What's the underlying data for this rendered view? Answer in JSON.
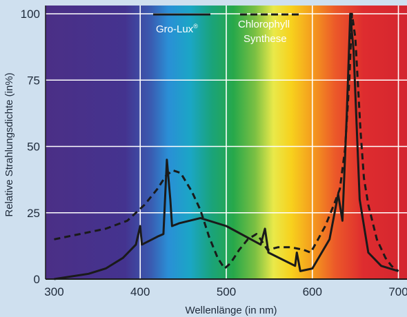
{
  "chart_data": {
    "type": "line",
    "xlabel": "Wellenlänge (in nm)",
    "ylabel": "Relative Strahlungsdichte (in%)",
    "xlim": [
      290,
      710
    ],
    "ylim": [
      0,
      100
    ],
    "x_ticks": [
      300,
      400,
      500,
      600,
      700
    ],
    "y_ticks": [
      0,
      25,
      50,
      75,
      100
    ],
    "grid": true,
    "background": "visible light spectrum gradient (violet to red)",
    "legend": {
      "placement": "top-center",
      "entries": [
        {
          "label": "Gro-Lux",
          "superscript": "®",
          "style": "solid"
        },
        {
          "label_lines": [
            "Chlorophyll",
            "Synthese"
          ],
          "style": "dashed"
        }
      ]
    },
    "series": [
      {
        "name": "Gro-Lux®",
        "style": "solid",
        "color": "#1a1a1a",
        "points": [
          [
            300,
            0
          ],
          [
            320,
            1
          ],
          [
            340,
            2
          ],
          [
            360,
            4
          ],
          [
            380,
            8
          ],
          [
            395,
            13
          ],
          [
            400,
            20
          ],
          [
            402,
            13
          ],
          [
            420,
            16
          ],
          [
            427,
            17
          ],
          [
            431,
            45
          ],
          [
            435,
            30
          ],
          [
            437,
            20
          ],
          [
            445,
            21
          ],
          [
            470,
            23
          ],
          [
            500,
            20
          ],
          [
            540,
            13
          ],
          [
            545,
            19
          ],
          [
            549,
            10
          ],
          [
            580,
            5
          ],
          [
            582,
            10
          ],
          [
            586,
            3
          ],
          [
            600,
            4
          ],
          [
            620,
            15
          ],
          [
            630,
            32
          ],
          [
            635,
            22
          ],
          [
            640,
            62
          ],
          [
            644,
            100
          ],
          [
            648,
            86
          ],
          [
            655,
            30
          ],
          [
            665,
            10
          ],
          [
            680,
            5
          ],
          [
            700,
            3
          ]
        ]
      },
      {
        "name": "Chlorophyll Synthese",
        "style": "dashed",
        "color": "#1a1a1a",
        "points": [
          [
            300,
            15
          ],
          [
            330,
            17
          ],
          [
            360,
            19
          ],
          [
            385,
            22
          ],
          [
            405,
            28
          ],
          [
            420,
            34
          ],
          [
            430,
            39
          ],
          [
            438,
            41
          ],
          [
            447,
            40
          ],
          [
            460,
            33
          ],
          [
            470,
            26
          ],
          [
            480,
            16
          ],
          [
            490,
            8
          ],
          [
            498,
            4
          ],
          [
            505,
            6
          ],
          [
            515,
            11
          ],
          [
            525,
            15
          ],
          [
            535,
            17
          ],
          [
            540,
            15
          ],
          [
            548,
            11
          ],
          [
            560,
            12
          ],
          [
            575,
            12
          ],
          [
            590,
            11
          ],
          [
            598,
            10
          ],
          [
            605,
            14
          ],
          [
            615,
            20
          ],
          [
            625,
            28
          ],
          [
            632,
            34
          ],
          [
            638,
            49
          ],
          [
            643,
            75
          ],
          [
            646,
            100
          ],
          [
            650,
            91
          ],
          [
            656,
            56
          ],
          [
            660,
            38
          ],
          [
            665,
            28
          ],
          [
            675,
            15
          ],
          [
            685,
            8
          ],
          [
            692,
            5
          ],
          [
            700,
            3
          ]
        ]
      }
    ]
  }
}
